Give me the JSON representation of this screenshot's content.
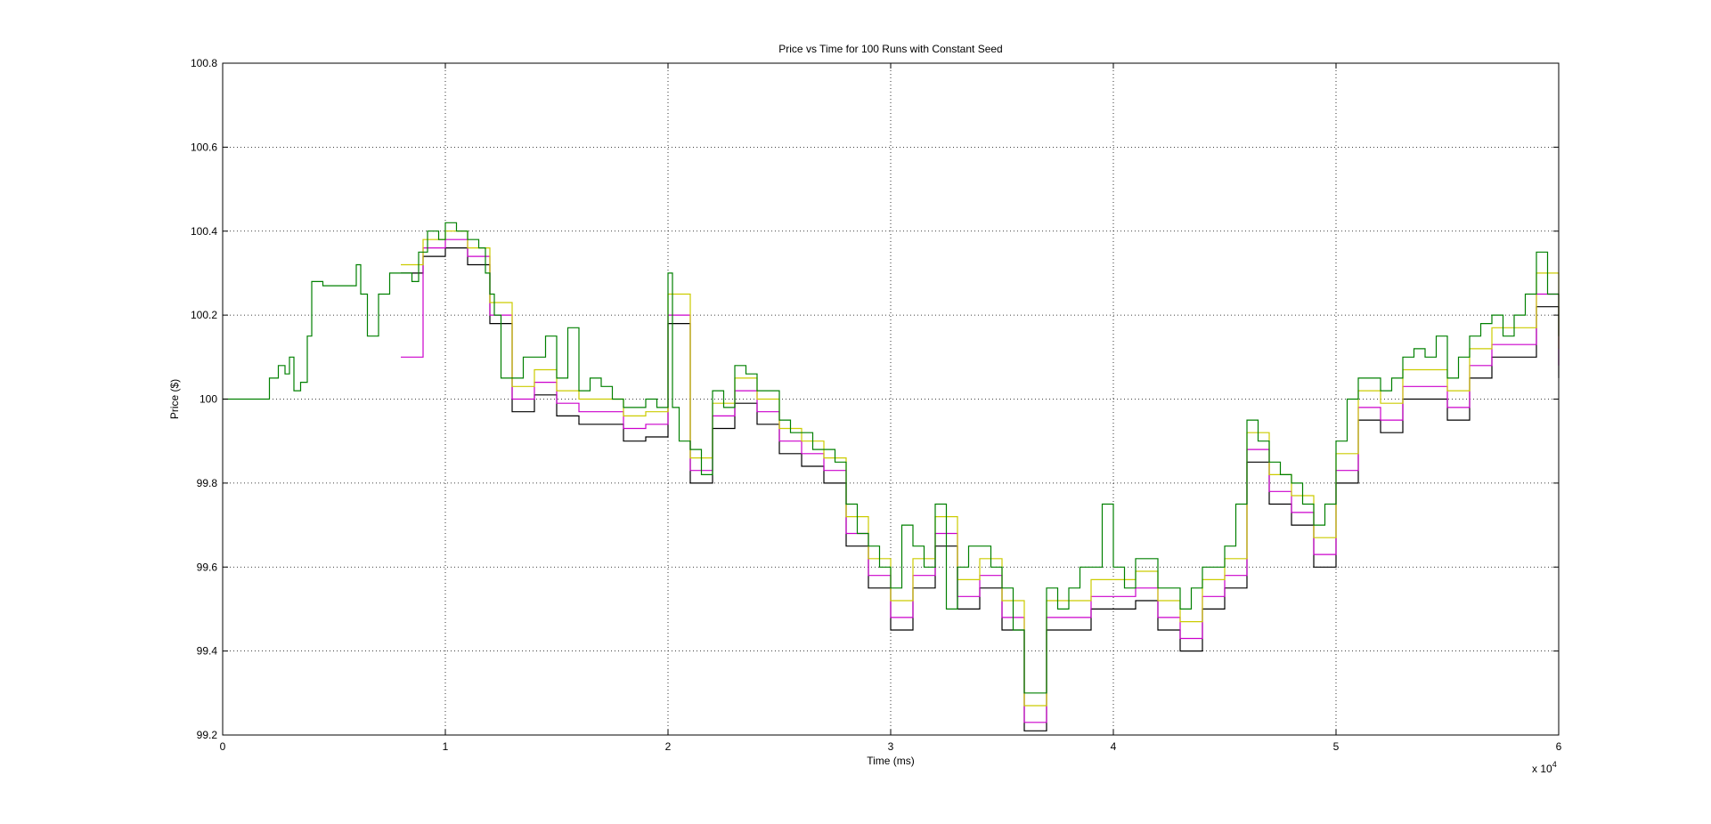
{
  "chart_data": {
    "type": "line",
    "title": "Price vs Time for 100 Runs with Constant Seed",
    "xlabel": "Time (ms)",
    "ylabel": "Price ($)",
    "x_scale_note": {
      "prefix": "x 10",
      "exponent": "4"
    },
    "xlim": [
      0,
      6
    ],
    "ylim": [
      99.2,
      100.8
    ],
    "x_ticks": [
      "0",
      "1",
      "2",
      "3",
      "4",
      "5",
      "6"
    ],
    "y_ticks": [
      "99.2",
      "99.4",
      "99.6",
      "99.8",
      "100",
      "100.2",
      "100.4",
      "100.6",
      "100.8"
    ],
    "grid": true,
    "legend": "none",
    "colors": {
      "green": "#008000",
      "yellow": "#cccc00",
      "magenta": "#cc00cc",
      "red": "#ff0000",
      "blue": "#0000ff",
      "cyan": "#00cccc",
      "black": "#000000"
    },
    "series": [
      {
        "color": "#008000",
        "points": [
          [
            0,
            100
          ],
          [
            0.2,
            100
          ],
          [
            0.21,
            100.05
          ],
          [
            0.25,
            100.08
          ],
          [
            0.28,
            100.06
          ],
          [
            0.3,
            100.1
          ],
          [
            0.32,
            100.02
          ],
          [
            0.35,
            100.04
          ],
          [
            0.38,
            100.15
          ],
          [
            0.4,
            100.28
          ],
          [
            0.45,
            100.27
          ],
          [
            0.5,
            100.27
          ],
          [
            0.55,
            100.27
          ],
          [
            0.6,
            100.32
          ],
          [
            0.62,
            100.25
          ],
          [
            0.65,
            100.15
          ],
          [
            0.7,
            100.25
          ],
          [
            0.75,
            100.3
          ],
          [
            0.8,
            100.3
          ],
          [
            0.85,
            100.28
          ],
          [
            0.88,
            100.35
          ],
          [
            0.92,
            100.4
          ],
          [
            0.97,
            100.38
          ],
          [
            1.0,
            100.42
          ],
          [
            1.05,
            100.4
          ],
          [
            1.1,
            100.38
          ],
          [
            1.15,
            100.36
          ],
          [
            1.18,
            100.3
          ],
          [
            1.2,
            100.25
          ],
          [
            1.22,
            100.2
          ],
          [
            1.25,
            100.05
          ],
          [
            1.3,
            100.05
          ],
          [
            1.35,
            100.1
          ],
          [
            1.4,
            100.1
          ],
          [
            1.45,
            100.15
          ],
          [
            1.5,
            100.05
          ],
          [
            1.55,
            100.17
          ],
          [
            1.6,
            100.02
          ],
          [
            1.65,
            100.05
          ],
          [
            1.7,
            100.03
          ],
          [
            1.75,
            100.0
          ],
          [
            1.8,
            99.98
          ],
          [
            1.85,
            99.98
          ],
          [
            1.9,
            100.0
          ],
          [
            1.95,
            99.98
          ],
          [
            2.0,
            100.3
          ],
          [
            2.02,
            99.98
          ],
          [
            2.05,
            99.9
          ],
          [
            2.1,
            99.88
          ],
          [
            2.15,
            99.82
          ],
          [
            2.2,
            100.02
          ],
          [
            2.25,
            99.98
          ],
          [
            2.3,
            100.08
          ],
          [
            2.35,
            100.06
          ],
          [
            2.4,
            100.02
          ],
          [
            2.45,
            100.02
          ],
          [
            2.5,
            99.95
          ],
          [
            2.55,
            99.92
          ],
          [
            2.6,
            99.92
          ],
          [
            2.65,
            99.88
          ],
          [
            2.7,
            99.88
          ],
          [
            2.75,
            99.85
          ],
          [
            2.8,
            99.75
          ],
          [
            2.85,
            99.68
          ],
          [
            2.9,
            99.65
          ],
          [
            2.95,
            99.6
          ],
          [
            3.0,
            99.55
          ],
          [
            3.05,
            99.7
          ],
          [
            3.1,
            99.65
          ],
          [
            3.15,
            99.6
          ],
          [
            3.2,
            99.75
          ],
          [
            3.25,
            99.5
          ],
          [
            3.3,
            99.6
          ],
          [
            3.35,
            99.65
          ],
          [
            3.4,
            99.65
          ],
          [
            3.45,
            99.6
          ],
          [
            3.5,
            99.55
          ],
          [
            3.55,
            99.45
          ],
          [
            3.6,
            99.3
          ],
          [
            3.65,
            99.3
          ],
          [
            3.7,
            99.55
          ],
          [
            3.75,
            99.5
          ],
          [
            3.8,
            99.55
          ],
          [
            3.85,
            99.6
          ],
          [
            3.9,
            99.6
          ],
          [
            3.95,
            99.75
          ],
          [
            4.0,
            99.6
          ],
          [
            4.05,
            99.55
          ],
          [
            4.1,
            99.62
          ],
          [
            4.15,
            99.62
          ],
          [
            4.2,
            99.55
          ],
          [
            4.25,
            99.55
          ],
          [
            4.3,
            99.5
          ],
          [
            4.35,
            99.55
          ],
          [
            4.4,
            99.6
          ],
          [
            4.45,
            99.6
          ],
          [
            4.5,
            99.65
          ],
          [
            4.55,
            99.75
          ],
          [
            4.6,
            99.95
          ],
          [
            4.65,
            99.9
          ],
          [
            4.7,
            99.85
          ],
          [
            4.75,
            99.82
          ],
          [
            4.8,
            99.8
          ],
          [
            4.85,
            99.75
          ],
          [
            4.9,
            99.7
          ],
          [
            4.95,
            99.75
          ],
          [
            5.0,
            99.9
          ],
          [
            5.05,
            100.0
          ],
          [
            5.1,
            100.05
          ],
          [
            5.15,
            100.05
          ],
          [
            5.2,
            100.02
          ],
          [
            5.25,
            100.05
          ],
          [
            5.3,
            100.1
          ],
          [
            5.35,
            100.12
          ],
          [
            5.4,
            100.1
          ],
          [
            5.45,
            100.15
          ],
          [
            5.5,
            100.05
          ],
          [
            5.55,
            100.1
          ],
          [
            5.6,
            100.15
          ],
          [
            5.65,
            100.18
          ],
          [
            5.7,
            100.2
          ],
          [
            5.75,
            100.15
          ],
          [
            5.8,
            100.2
          ],
          [
            5.85,
            100.25
          ],
          [
            5.9,
            100.35
          ],
          [
            5.95,
            100.25
          ],
          [
            6.0,
            100.15
          ]
        ]
      },
      {
        "color": "#cccc00",
        "points": [
          [
            0.8,
            100.32
          ],
          [
            0.9,
            100.38
          ],
          [
            1.0,
            100.4
          ],
          [
            1.1,
            100.36
          ],
          [
            1.2,
            100.23
          ],
          [
            1.3,
            100.03
          ],
          [
            1.4,
            100.07
          ],
          [
            1.5,
            100.02
          ],
          [
            1.6,
            100.0
          ],
          [
            1.7,
            100.0
          ],
          [
            1.8,
            99.96
          ],
          [
            1.9,
            99.97
          ],
          [
            2.0,
            100.25
          ],
          [
            2.1,
            99.86
          ],
          [
            2.2,
            99.99
          ],
          [
            2.3,
            100.05
          ],
          [
            2.4,
            100.0
          ],
          [
            2.5,
            99.93
          ],
          [
            2.6,
            99.9
          ],
          [
            2.7,
            99.86
          ],
          [
            2.8,
            99.72
          ],
          [
            2.9,
            99.62
          ],
          [
            3.0,
            99.52
          ],
          [
            3.1,
            99.62
          ],
          [
            3.2,
            99.72
          ],
          [
            3.3,
            99.57
          ],
          [
            3.4,
            99.62
          ],
          [
            3.5,
            99.52
          ],
          [
            3.6,
            99.27
          ],
          [
            3.7,
            99.52
          ],
          [
            3.8,
            99.52
          ],
          [
            3.9,
            99.57
          ],
          [
            4.0,
            99.57
          ],
          [
            4.1,
            99.59
          ],
          [
            4.2,
            99.52
          ],
          [
            4.3,
            99.47
          ],
          [
            4.4,
            99.57
          ],
          [
            4.5,
            99.62
          ],
          [
            4.6,
            99.92
          ],
          [
            4.7,
            99.82
          ],
          [
            4.8,
            99.77
          ],
          [
            4.9,
            99.67
          ],
          [
            5.0,
            99.87
          ],
          [
            5.1,
            100.02
          ],
          [
            5.2,
            99.99
          ],
          [
            5.3,
            100.07
          ],
          [
            5.4,
            100.07
          ],
          [
            5.5,
            100.02
          ],
          [
            5.6,
            100.12
          ],
          [
            5.7,
            100.17
          ],
          [
            5.8,
            100.17
          ],
          [
            5.9,
            100.3
          ],
          [
            6.0,
            100.12
          ]
        ]
      },
      {
        "color": "#cc00cc",
        "points": [
          [
            0.8,
            100.1
          ],
          [
            0.9,
            100.36
          ],
          [
            1.0,
            100.38
          ],
          [
            1.1,
            100.34
          ],
          [
            1.2,
            100.2
          ],
          [
            1.3,
            100.0
          ],
          [
            1.4,
            100.04
          ],
          [
            1.5,
            99.99
          ],
          [
            1.6,
            99.97
          ],
          [
            1.7,
            99.97
          ],
          [
            1.8,
            99.93
          ],
          [
            1.9,
            99.94
          ],
          [
            2.0,
            100.2
          ],
          [
            2.1,
            99.83
          ],
          [
            2.2,
            99.96
          ],
          [
            2.3,
            100.02
          ],
          [
            2.4,
            99.97
          ],
          [
            2.5,
            99.9
          ],
          [
            2.6,
            99.87
          ],
          [
            2.7,
            99.83
          ],
          [
            2.8,
            99.68
          ],
          [
            2.9,
            99.58
          ],
          [
            3.0,
            99.48
          ],
          [
            3.1,
            99.58
          ],
          [
            3.2,
            99.68
          ],
          [
            3.3,
            99.53
          ],
          [
            3.4,
            99.58
          ],
          [
            3.5,
            99.48
          ],
          [
            3.6,
            99.23
          ],
          [
            3.7,
            99.48
          ],
          [
            3.8,
            99.48
          ],
          [
            3.9,
            99.53
          ],
          [
            4.0,
            99.53
          ],
          [
            4.1,
            99.55
          ],
          [
            4.2,
            99.48
          ],
          [
            4.3,
            99.43
          ],
          [
            4.4,
            99.53
          ],
          [
            4.5,
            99.58
          ],
          [
            4.6,
            99.88
          ],
          [
            4.7,
            99.78
          ],
          [
            4.8,
            99.73
          ],
          [
            4.9,
            99.63
          ],
          [
            5.0,
            99.83
          ],
          [
            5.1,
            99.98
          ],
          [
            5.2,
            99.95
          ],
          [
            5.3,
            100.03
          ],
          [
            5.4,
            100.03
          ],
          [
            5.5,
            99.98
          ],
          [
            5.6,
            100.08
          ],
          [
            5.7,
            100.13
          ],
          [
            5.8,
            100.13
          ],
          [
            5.9,
            100.25
          ],
          [
            6.0,
            100.08
          ]
        ]
      },
      {
        "color": "#000000",
        "points": [
          [
            0.8,
            100.3
          ],
          [
            0.9,
            100.34
          ],
          [
            1.0,
            100.36
          ],
          [
            1.1,
            100.32
          ],
          [
            1.2,
            100.18
          ],
          [
            1.3,
            99.97
          ],
          [
            1.4,
            100.01
          ],
          [
            1.5,
            99.96
          ],
          [
            1.6,
            99.94
          ],
          [
            1.7,
            99.94
          ],
          [
            1.8,
            99.9
          ],
          [
            1.9,
            99.91
          ],
          [
            2.0,
            100.18
          ],
          [
            2.1,
            99.8
          ],
          [
            2.2,
            99.93
          ],
          [
            2.3,
            99.99
          ],
          [
            2.4,
            99.94
          ],
          [
            2.5,
            99.87
          ],
          [
            2.6,
            99.84
          ],
          [
            2.7,
            99.8
          ],
          [
            2.8,
            99.65
          ],
          [
            2.9,
            99.55
          ],
          [
            3.0,
            99.45
          ],
          [
            3.1,
            99.55
          ],
          [
            3.2,
            99.65
          ],
          [
            3.3,
            99.5
          ],
          [
            3.4,
            99.55
          ],
          [
            3.5,
            99.45
          ],
          [
            3.6,
            99.21
          ],
          [
            3.7,
            99.45
          ],
          [
            3.8,
            99.45
          ],
          [
            3.9,
            99.5
          ],
          [
            4.0,
            99.5
          ],
          [
            4.1,
            99.52
          ],
          [
            4.2,
            99.45
          ],
          [
            4.3,
            99.4
          ],
          [
            4.4,
            99.5
          ],
          [
            4.5,
            99.55
          ],
          [
            4.6,
            99.85
          ],
          [
            4.7,
            99.75
          ],
          [
            4.8,
            99.7
          ],
          [
            4.9,
            99.6
          ],
          [
            5.0,
            99.8
          ],
          [
            5.1,
            99.95
          ],
          [
            5.2,
            99.92
          ],
          [
            5.3,
            100.0
          ],
          [
            5.4,
            100.0
          ],
          [
            5.5,
            99.95
          ],
          [
            5.6,
            100.05
          ],
          [
            5.7,
            100.1
          ],
          [
            5.8,
            100.1
          ],
          [
            5.9,
            100.22
          ],
          [
            6.0,
            100.05
          ]
        ]
      }
    ]
  }
}
